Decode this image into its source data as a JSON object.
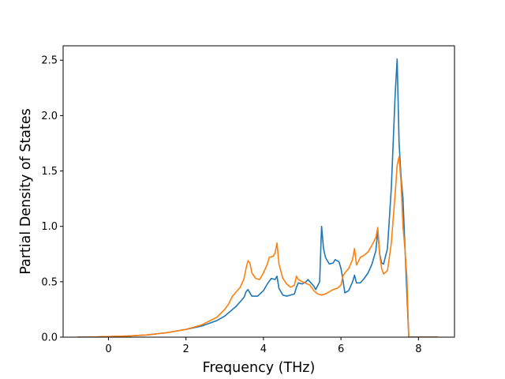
{
  "chart_data": {
    "type": "line",
    "title": "",
    "xlabel": "Frequency (THz)",
    "ylabel": "Partial Density of States",
    "xlim": [
      -1.17,
      8.93
    ],
    "ylim": [
      0.0,
      2.63
    ],
    "xticks": [
      0,
      2,
      4,
      6,
      8
    ],
    "xtick_labels": [
      "0",
      "2",
      "4",
      "6",
      "8"
    ],
    "yticks": [
      0.0,
      0.5,
      1.0,
      1.5,
      2.0,
      2.5
    ],
    "ytick_labels": [
      "0.0",
      "0.5",
      "1.0",
      "1.5",
      "2.0",
      "2.5"
    ],
    "grid": false,
    "legend": "none",
    "series": [
      {
        "color": "#1f77b4",
        "x": [
          -0.8,
          -0.5,
          0.0,
          0.5,
          1.0,
          1.5,
          2.0,
          2.4,
          2.8,
          3.0,
          3.1,
          3.3,
          3.5,
          3.55,
          3.6,
          3.7,
          3.85,
          4.0,
          4.1,
          4.2,
          4.3,
          4.35,
          4.4,
          4.5,
          4.6,
          4.8,
          4.85,
          4.9,
          5.0,
          5.1,
          5.15,
          5.2,
          5.3,
          5.35,
          5.45,
          5.5,
          5.55,
          5.6,
          5.7,
          5.8,
          5.85,
          5.95,
          6.0,
          6.05,
          6.1,
          6.2,
          6.3,
          6.35,
          6.4,
          6.5,
          6.6,
          6.7,
          6.8,
          6.9,
          6.95,
          7.0,
          7.05,
          7.1,
          7.2,
          7.3,
          7.4,
          7.45,
          7.5,
          7.55,
          7.6,
          7.7,
          7.75,
          7.8,
          8.0,
          8.5
        ],
        "y": [
          0.0,
          0.0,
          0.005,
          0.01,
          0.02,
          0.04,
          0.07,
          0.1,
          0.15,
          0.19,
          0.22,
          0.28,
          0.36,
          0.41,
          0.43,
          0.37,
          0.37,
          0.42,
          0.48,
          0.53,
          0.52,
          0.55,
          0.44,
          0.38,
          0.37,
          0.39,
          0.45,
          0.49,
          0.48,
          0.5,
          0.52,
          0.5,
          0.46,
          0.43,
          0.5,
          1.0,
          0.8,
          0.72,
          0.66,
          0.67,
          0.7,
          0.68,
          0.62,
          0.52,
          0.4,
          0.42,
          0.5,
          0.56,
          0.49,
          0.49,
          0.53,
          0.58,
          0.66,
          0.78,
          0.96,
          0.75,
          0.67,
          0.66,
          0.8,
          1.35,
          2.2,
          2.51,
          1.75,
          1.45,
          1.25,
          0.4,
          0.0,
          0.0,
          0.0,
          0.0
        ]
      },
      {
        "color": "#ff7f0e",
        "x": [
          -0.8,
          -0.5,
          0.0,
          0.5,
          1.0,
          1.5,
          2.0,
          2.4,
          2.8,
          3.0,
          3.1,
          3.2,
          3.4,
          3.5,
          3.55,
          3.6,
          3.65,
          3.7,
          3.8,
          3.9,
          4.0,
          4.1,
          4.15,
          4.25,
          4.3,
          4.35,
          4.4,
          4.5,
          4.6,
          4.7,
          4.8,
          4.85,
          4.9,
          5.0,
          5.2,
          5.3,
          5.4,
          5.5,
          5.6,
          5.7,
          5.8,
          5.9,
          6.0,
          6.05,
          6.1,
          6.2,
          6.3,
          6.35,
          6.4,
          6.5,
          6.6,
          6.7,
          6.8,
          6.9,
          6.95,
          7.0,
          7.05,
          7.1,
          7.2,
          7.3,
          7.4,
          7.45,
          7.5,
          7.55,
          7.6,
          7.65,
          7.7,
          7.75,
          7.8,
          8.0,
          8.5
        ],
        "y": [
          0.0,
          0.0,
          0.005,
          0.01,
          0.02,
          0.04,
          0.07,
          0.11,
          0.18,
          0.25,
          0.3,
          0.37,
          0.45,
          0.53,
          0.62,
          0.69,
          0.67,
          0.58,
          0.53,
          0.52,
          0.58,
          0.66,
          0.72,
          0.73,
          0.76,
          0.85,
          0.66,
          0.53,
          0.48,
          0.45,
          0.47,
          0.55,
          0.52,
          0.5,
          0.47,
          0.42,
          0.39,
          0.38,
          0.39,
          0.41,
          0.43,
          0.44,
          0.47,
          0.55,
          0.58,
          0.62,
          0.7,
          0.8,
          0.65,
          0.72,
          0.74,
          0.77,
          0.83,
          0.9,
          0.99,
          0.74,
          0.62,
          0.57,
          0.6,
          0.85,
          1.3,
          1.55,
          1.63,
          1.4,
          1.0,
          0.8,
          0.55,
          0.0,
          0.0,
          0.0,
          0.0
        ]
      }
    ]
  }
}
